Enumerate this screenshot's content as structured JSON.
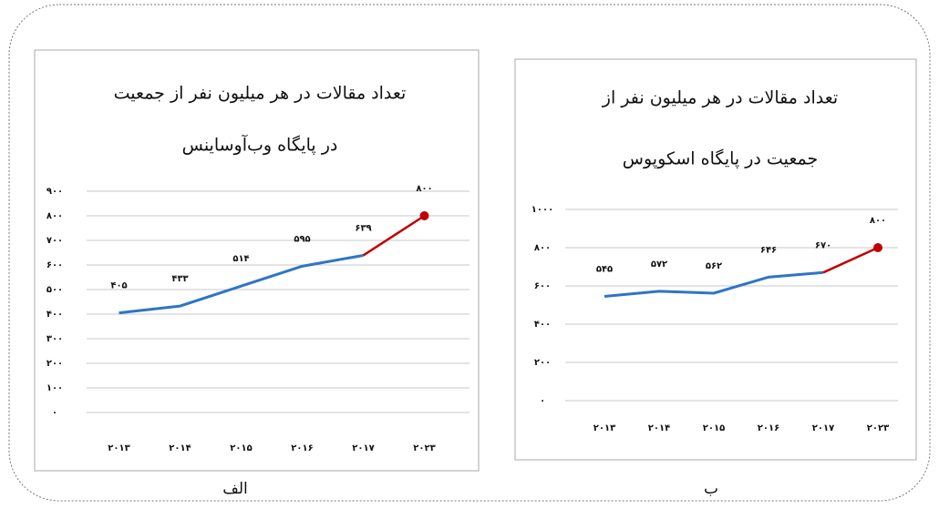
{
  "chart_data": [
    {
      "type": "line",
      "caption": "الف",
      "title": [
        "تعداد مقالات در هر میلیون نفر از جمعیت",
        "در پایگاه وب‌آوساینس"
      ],
      "categories": [
        "۲۰۱۳",
        "۲۰۱۴",
        "۲۰۱۵",
        "۲۰۱۶",
        "۲۰۱۷",
        "۲۰۲۳"
      ],
      "values": [
        405,
        433,
        514,
        595,
        639,
        800
      ],
      "value_labels": [
        "۴۰۵",
        "۴۳۳",
        "۵۱۴",
        "۵۹۵",
        "۶۳۹",
        "۸۰۰"
      ],
      "color": "#2e75c6",
      "last_segment_color": "#c00000",
      "ylim": [
        0,
        900
      ],
      "yticks": [
        {
          "value": 0,
          "label": "۰"
        },
        {
          "value": 100,
          "label": "۱۰۰"
        },
        {
          "value": 200,
          "label": "۲۰۰"
        },
        {
          "value": 300,
          "label": "۳۰۰"
        },
        {
          "value": 400,
          "label": "۴۰۰"
        },
        {
          "value": 500,
          "label": "۵۰۰"
        },
        {
          "value": 600,
          "label": "۶۰۰"
        },
        {
          "value": 700,
          "label": "۷۰۰"
        },
        {
          "value": 800,
          "label": "۸۰۰"
        },
        {
          "value": 900,
          "label": "۹۰۰"
        }
      ],
      "grid": true
    },
    {
      "type": "line",
      "caption": "ب",
      "title": [
        "تعداد مقالات در هر میلیون نفر از",
        "جمعیت در پایگاه اسکوپوس"
      ],
      "categories": [
        "۲۰۱۳",
        "۲۰۱۴",
        "۲۰۱۵",
        "۲۰۱۶",
        "۲۰۱۷",
        "۲۰۲۳"
      ],
      "values": [
        545,
        572,
        562,
        646,
        670,
        800
      ],
      "value_labels": [
        "۵۴۵",
        "۵۷۲",
        "۵۶۲",
        "۶۴۶",
        "۶۷۰",
        "۸۰۰"
      ],
      "color": "#2e75c6",
      "last_segment_color": "#c00000",
      "ylim": [
        0,
        1000
      ],
      "yticks": [
        {
          "value": 0,
          "label": "۰"
        },
        {
          "value": 200,
          "label": "۲۰۰"
        },
        {
          "value": 400,
          "label": "۴۰۰"
        },
        {
          "value": 600,
          "label": "۶۰۰"
        },
        {
          "value": 800,
          "label": "۸۰۰"
        },
        {
          "value": 1000,
          "label": "۱۰۰۰"
        }
      ],
      "grid": true
    }
  ]
}
